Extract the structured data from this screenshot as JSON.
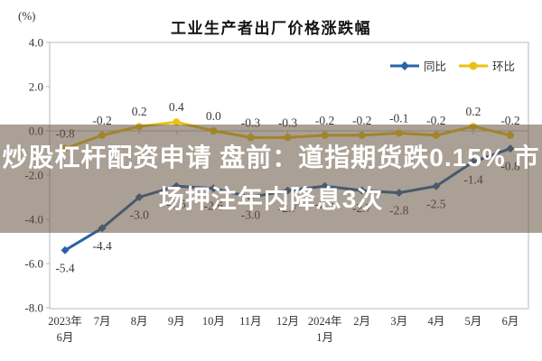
{
  "chart": {
    "title": "工业生产者出厂价格涨跌幅",
    "unit_label": "(%)"
  },
  "legend": {
    "items": [
      {
        "label": "同比",
        "marker": "diamond-marker-icon"
      },
      {
        "label": "环比",
        "marker": "circle-marker-icon"
      }
    ]
  },
  "overlay": {
    "line1": "炒股杠杆配资申请 盘前：道指期货跌0.15% 市",
    "line2": "场押注年内降息3次",
    "text_color": "#ffffff",
    "bg_color": "rgba(100,82,62,0.55)"
  },
  "colors": {
    "tongbi": "#2a63a5",
    "huanbi": "#edc013",
    "data_label": "#3a3a3a",
    "axis_text": "#333333",
    "frame": "#b9b9b9"
  },
  "chart_data": {
    "type": "line",
    "title": "工业生产者出厂价格涨跌幅",
    "xlabel": "",
    "ylabel": "(%)",
    "ylim": [
      -8.0,
      4.0
    ],
    "yticks": [
      4.0,
      2.0,
      0.0,
      -2.0,
      -4.0,
      -6.0,
      -8.0
    ],
    "grid": false,
    "legend_position": "top-right-inside",
    "categories": [
      "2023年\n6月",
      "7月",
      "8月",
      "9月",
      "10月",
      "11月",
      "12月",
      "2024年\n1月",
      "2月",
      "3月",
      "4月",
      "5月",
      "6月"
    ],
    "series": [
      {
        "name": "同比",
        "color": "#2a63a5",
        "marker": "diamond",
        "label_position": "below",
        "values": [
          -5.4,
          -4.4,
          -3.0,
          -2.5,
          -2.6,
          -3.0,
          -2.7,
          -2.5,
          -2.7,
          -2.8,
          -2.5,
          -1.4,
          -0.8
        ]
      },
      {
        "name": "环比",
        "color": "#edc013",
        "marker": "circle",
        "label_position": "above",
        "values": [
          -0.8,
          -0.2,
          0.2,
          0.4,
          0.0,
          -0.3,
          -0.3,
          -0.2,
          -0.2,
          -0.1,
          -0.2,
          0.2,
          -0.2
        ]
      }
    ]
  }
}
